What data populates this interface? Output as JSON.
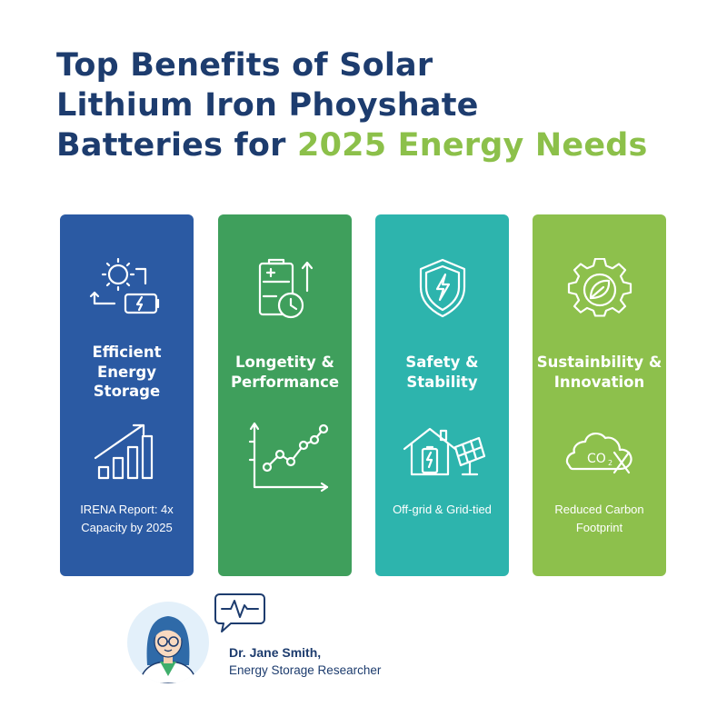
{
  "title": {
    "line1": "Top Benefits of Solar",
    "line2": "Lithium Iron Phoyshate",
    "line3_plain": "Batteries for ",
    "line3_accent": "2025 Energy Needs"
  },
  "colors": {
    "title": "#1d3c6e",
    "accent": "#8cc04a",
    "card1": "#2b5aa3",
    "card2": "#3f9f5c",
    "card3": "#2db4ad",
    "card4": "#8dc04c"
  },
  "cards": [
    {
      "title": "Efficient Energy Storage",
      "top_icon": "solar-battery-cycle-icon",
      "mid_icon": "bar-growth-arrow-icon",
      "caption": "IRENA Report: 4x Capacity by 2025"
    },
    {
      "title": "Longetity & Performance",
      "top_icon": "battery-clock-icon",
      "mid_icon": "line-chart-icon",
      "caption": ""
    },
    {
      "title": "Safety & Stability",
      "top_icon": "shield-lightning-icon",
      "mid_icon": "house-solar-panel-icon",
      "caption": "Off-grid & Grid-tied"
    },
    {
      "title": "Sustainbility & Innovation",
      "top_icon": "gear-leaf-icon",
      "mid_icon": "co2-cloud-icon",
      "caption": "Reduced Carbon Footprint"
    }
  ],
  "author": {
    "name": "Dr. Jane Smith,",
    "role": "Energy Storage Researcher",
    "avatar_icon": "researcher-avatar-icon",
    "bubble_icon": "pulse-speech-bubble-icon"
  }
}
